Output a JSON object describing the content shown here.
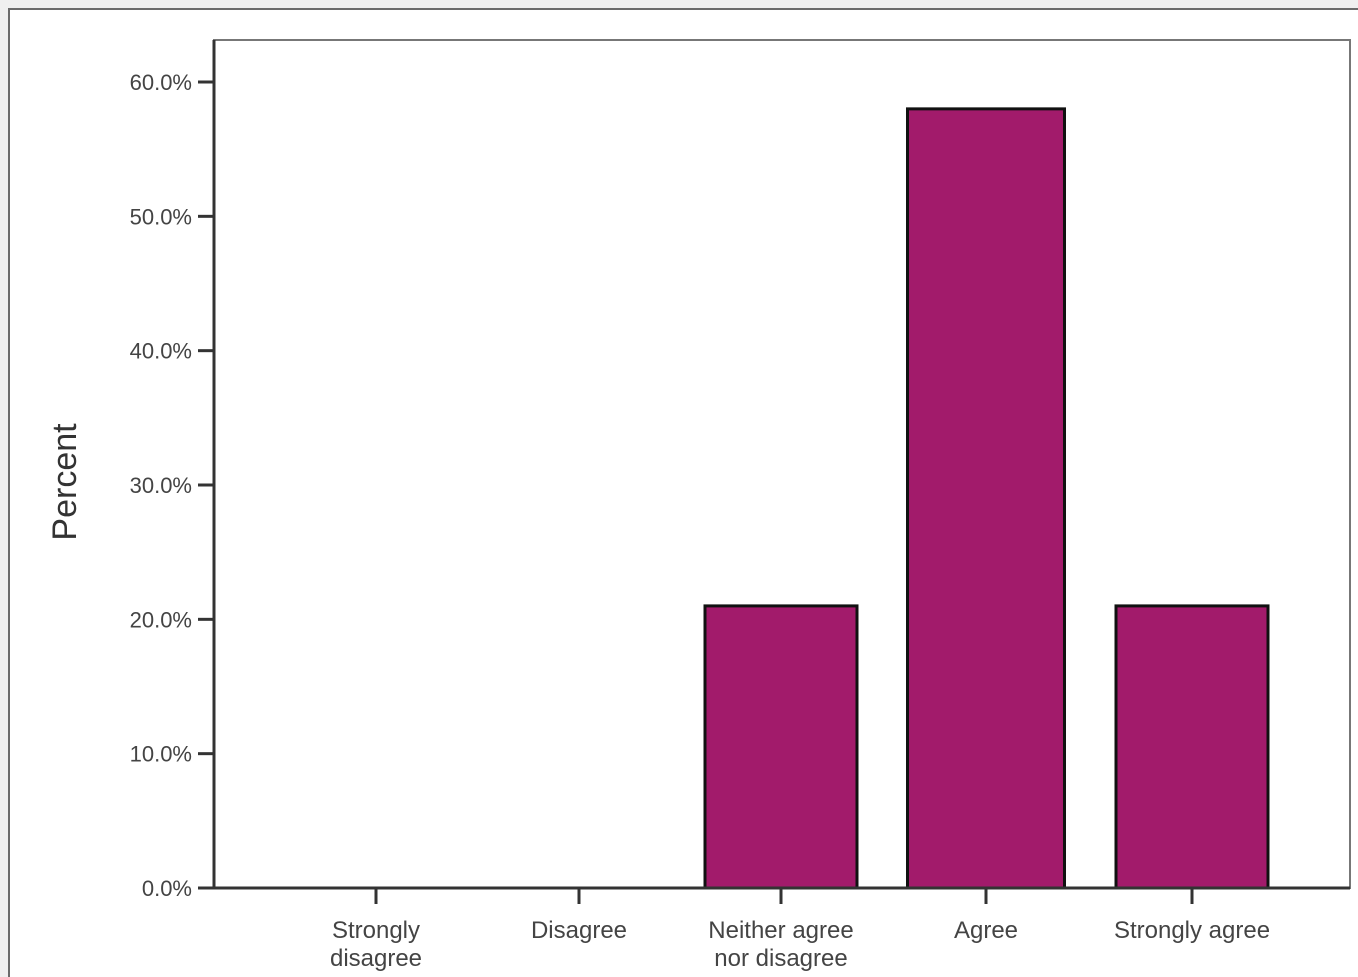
{
  "chart_data": {
    "type": "bar",
    "title": "",
    "xlabel": "",
    "ylabel": "Percent",
    "categories": [
      [
        "Strongly",
        "disagree"
      ],
      [
        "Disagree"
      ],
      [
        "Neither agree",
        "nor disagree"
      ],
      [
        "Agree"
      ],
      [
        "Strongly agree"
      ]
    ],
    "values": [
      0.0,
      0.0,
      21.0,
      58.0,
      21.0
    ],
    "ylim": [
      0,
      60
    ],
    "yticks": [
      0,
      10,
      20,
      30,
      40,
      50,
      60
    ],
    "ytick_labels": [
      "0.0%",
      "10.0%",
      "20.0%",
      "30.0%",
      "40.0%",
      "50.0%",
      "60.0%"
    ],
    "grid": false,
    "bar_color": "#a21b6b",
    "bar_edge_color": "#111111"
  }
}
